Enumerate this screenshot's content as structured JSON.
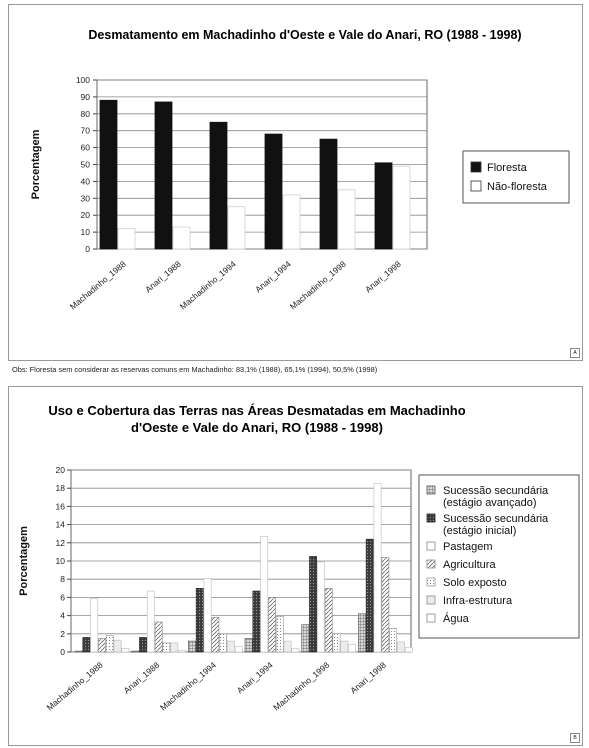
{
  "chart_data": [
    {
      "type": "bar",
      "title": "Desmatamento em Machadinho d'Oeste e Vale do Anari, RO (1988 - 1998)",
      "ylabel": "Porcentagem",
      "ylim": [
        0,
        100
      ],
      "yticks": [
        0,
        10,
        20,
        30,
        40,
        50,
        60,
        70,
        80,
        90,
        100
      ],
      "grid": true,
      "legend_position": "right",
      "categories": [
        "Machadinho_1988",
        "Anari_1988",
        "Machadinho_1994",
        "Anari_1994",
        "Machadinho_1998",
        "Anari_1998"
      ],
      "series": [
        {
          "name": "Floresta",
          "color": "#111111",
          "values": [
            88,
            87,
            75,
            68,
            65,
            51
          ]
        },
        {
          "name": "Não-floresta",
          "color": "#ffffff",
          "values": [
            12,
            13,
            25,
            32,
            35,
            49
          ]
        }
      ],
      "corner_label": "A"
    },
    {
      "type": "bar",
      "title_lines": [
        "Uso e Cobertura das Terras nas Áreas Desmatadas  em Machadinho",
        "d'Oeste e Vale do Anari, RO (1988 - 1998)"
      ],
      "ylabel": "Porcentagem",
      "ylim": [
        0,
        20
      ],
      "yticks": [
        0,
        2,
        4,
        6,
        8,
        10,
        12,
        14,
        16,
        18,
        20
      ],
      "grid": true,
      "legend_position": "right",
      "categories": [
        "Machadinho_1988",
        "Anari_1988",
        "Machadinho_1994",
        "Anari_1994",
        "Machadinho_1998",
        "Anari_1998"
      ],
      "series": [
        {
          "name": "Sucessão secundária (estágio avançado)",
          "name_lines": [
            "Sucessão secundária",
            "(estágio avançado)"
          ],
          "pattern": "grid",
          "values": [
            0.1,
            0.1,
            1.2,
            1.5,
            3.0,
            4.2
          ]
        },
        {
          "name": "Sucessão secundária (estágio inicial)",
          "name_lines": [
            "Sucessão secundária",
            "(estágio inicial)"
          ],
          "pattern": "dark",
          "values": [
            1.6,
            1.6,
            7.0,
            6.7,
            10.5,
            12.4
          ]
        },
        {
          "name": "Pastagem",
          "name_lines": [
            "Pastagem"
          ],
          "pattern": "white",
          "values": [
            5.9,
            6.7,
            8.1,
            12.7,
            9.9,
            18.5
          ]
        },
        {
          "name": "Agricultura",
          "name_lines": [
            "Agricultura"
          ],
          "pattern": "diag",
          "values": [
            1.5,
            3.3,
            3.8,
            6.0,
            7.0,
            10.4
          ]
        },
        {
          "name": "Solo exposto",
          "name_lines": [
            "Solo exposto"
          ],
          "pattern": "dots",
          "values": [
            1.8,
            1.0,
            2.0,
            3.9,
            2.0,
            2.6
          ]
        },
        {
          "name": "Infra-estrutura",
          "name_lines": [
            "Infra-estrutura"
          ],
          "pattern": "light",
          "values": [
            1.3,
            1.0,
            1.2,
            1.2,
            1.2,
            1.1
          ]
        },
        {
          "name": "Água",
          "name_lines": [
            "Água"
          ],
          "pattern": "white",
          "values": [
            0.4,
            0.2,
            0.6,
            0.4,
            0.8,
            0.5
          ]
        }
      ],
      "corner_label": "B"
    }
  ],
  "note": "Obs: Floresta sem considerar as reservas comuns em Machadinho: 83,1% (1988), 65,1% (1994), 50,5% (1998)"
}
